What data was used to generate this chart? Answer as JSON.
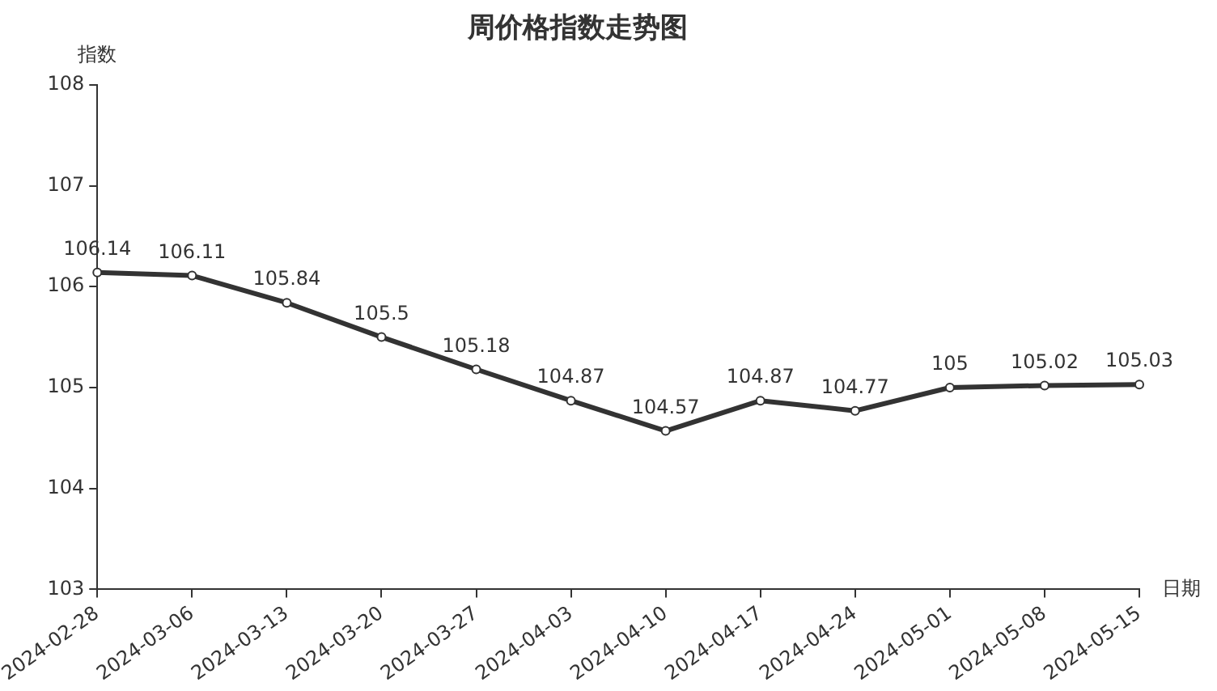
{
  "chart_data": {
    "type": "line",
    "title": "周价格指数走势图",
    "xlabel": "日期",
    "ylabel": "指数",
    "categories": [
      "2024-02-28",
      "2024-03-06",
      "2024-03-13",
      "2024-03-20",
      "2024-03-27",
      "2024-04-03",
      "2024-04-10",
      "2024-04-17",
      "2024-04-24",
      "2024-05-01",
      "2024-05-08",
      "2024-05-15"
    ],
    "series": [
      {
        "color": "#333333",
        "values": [
          106.14,
          106.11,
          105.84,
          105.5,
          105.18,
          104.87,
          104.57,
          104.87,
          104.77,
          105,
          105.02,
          105.03
        ]
      }
    ],
    "ylim": [
      103,
      108
    ],
    "yticks": [
      103,
      104,
      105,
      106,
      107,
      108
    ],
    "grid": false,
    "legend": false,
    "marker": "circle",
    "line_style": "solid",
    "data_labels": true
  }
}
